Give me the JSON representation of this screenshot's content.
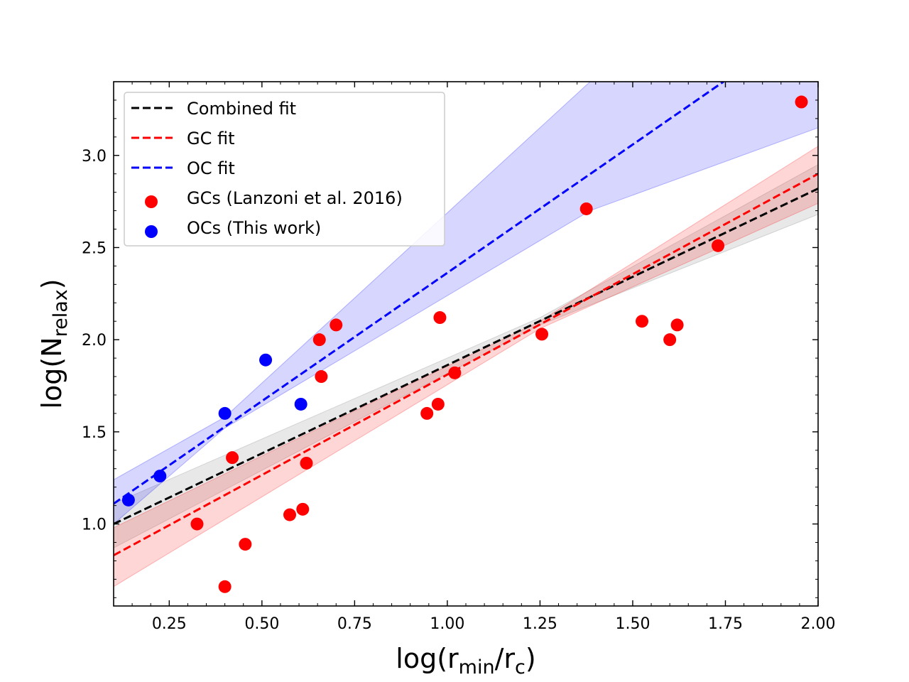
{
  "chart_data": {
    "type": "scatter",
    "title": "",
    "xlabel": {
      "main": "log(r",
      "sub1": "min",
      "mid": "/r",
      "sub2": "c",
      "end": ")"
    },
    "ylabel": {
      "main": "log(N",
      "sub": "relax",
      "end": ")"
    },
    "xlim": [
      0.1,
      2.0
    ],
    "ylim": [
      0.555,
      3.4
    ],
    "xticks": [
      0.25,
      0.5,
      0.75,
      1.0,
      1.25,
      1.5,
      1.75,
      2.0
    ],
    "xtick_labels": [
      "0.25",
      "0.50",
      "0.75",
      "1.00",
      "1.25",
      "1.50",
      "1.75",
      "2.00"
    ],
    "yticks": [
      1.0,
      1.5,
      2.0,
      2.5,
      3.0
    ],
    "ytick_labels": [
      "1.0",
      "1.5",
      "2.0",
      "2.5",
      "3.0"
    ],
    "grid": false,
    "legend_position": "top-left",
    "series": [
      {
        "name": "GCs (Lanzoni et al. 2016)",
        "kind": "points",
        "color": "#ff0000",
        "points": [
          {
            "x": 0.325,
            "y": 1.0
          },
          {
            "x": 0.4,
            "y": 0.66
          },
          {
            "x": 0.42,
            "y": 1.36
          },
          {
            "x": 0.455,
            "y": 0.89
          },
          {
            "x": 0.575,
            "y": 1.05
          },
          {
            "x": 0.61,
            "y": 1.08
          },
          {
            "x": 0.62,
            "y": 1.33
          },
          {
            "x": 0.655,
            "y": 2.0
          },
          {
            "x": 0.66,
            "y": 1.8
          },
          {
            "x": 0.7,
            "y": 2.08
          },
          {
            "x": 0.945,
            "y": 1.6
          },
          {
            "x": 0.975,
            "y": 1.65
          },
          {
            "x": 0.98,
            "y": 2.12
          },
          {
            "x": 1.02,
            "y": 1.82
          },
          {
            "x": 1.255,
            "y": 2.03
          },
          {
            "x": 1.375,
            "y": 2.71
          },
          {
            "x": 1.525,
            "y": 2.1
          },
          {
            "x": 1.6,
            "y": 2.0
          },
          {
            "x": 1.62,
            "y": 2.08
          },
          {
            "x": 1.73,
            "y": 2.51
          },
          {
            "x": 1.955,
            "y": 3.29
          }
        ]
      },
      {
        "name": "OCs (This work)",
        "kind": "points",
        "color": "#0000ff",
        "points": [
          {
            "x": 0.14,
            "y": 1.13
          },
          {
            "x": 0.225,
            "y": 1.26
          },
          {
            "x": 0.4,
            "y": 1.6
          },
          {
            "x": 0.51,
            "y": 1.89
          },
          {
            "x": 0.605,
            "y": 1.65
          }
        ]
      },
      {
        "name": "Combined fit",
        "kind": "fit",
        "color": "#000000",
        "band_color": "#808080",
        "band_opacity": 0.18,
        "x": [
          0.1,
          2.0
        ],
        "y": [
          1.0,
          2.82
        ],
        "band": [
          {
            "x": 0.1,
            "lo": 0.87,
            "hi": 1.11
          },
          {
            "x": 1.25,
            "lo": 2.08,
            "hi": 2.12
          },
          {
            "x": 2.0,
            "lo": 2.68,
            "hi": 2.95
          }
        ]
      },
      {
        "name": "GC fit",
        "kind": "fit",
        "color": "#ff0000",
        "band_color": "#ff0000",
        "band_opacity": 0.16,
        "x": [
          0.1,
          2.0
        ],
        "y": [
          0.83,
          2.9
        ],
        "band": [
          {
            "x": 0.1,
            "lo": 0.66,
            "hi": 0.98
          },
          {
            "x": 1.25,
            "lo": 2.06,
            "hi": 2.1
          },
          {
            "x": 2.0,
            "lo": 2.74,
            "hi": 3.05
          }
        ]
      },
      {
        "name": "OC fit",
        "kind": "fit",
        "color": "#0000ff",
        "band_color": "#0000ff",
        "band_opacity": 0.16,
        "x": [
          0.1,
          1.745
        ],
        "y": [
          1.11,
          3.4
        ],
        "band": [
          {
            "x": 0.1,
            "lo": 1.0,
            "hi": 1.24
          },
          {
            "x": 0.4,
            "lo": 1.52,
            "hi": 1.58
          },
          {
            "x": 1.385,
            "lo": 2.7,
            "hi": 3.4
          },
          {
            "x": 2.0,
            "lo": 3.15,
            "hi": 3.4
          }
        ]
      }
    ],
    "legend": [
      {
        "label": "Combined fit",
        "kind": "line",
        "color": "#000000"
      },
      {
        "label": "GC fit",
        "kind": "line",
        "color": "#ff0000"
      },
      {
        "label": "OC fit",
        "kind": "line",
        "color": "#0000ff"
      },
      {
        "label": "GCs (Lanzoni et al. 2016)",
        "kind": "marker",
        "color": "#ff0000"
      },
      {
        "label": "OCs (This work)",
        "kind": "marker",
        "color": "#0000ff"
      }
    ]
  }
}
